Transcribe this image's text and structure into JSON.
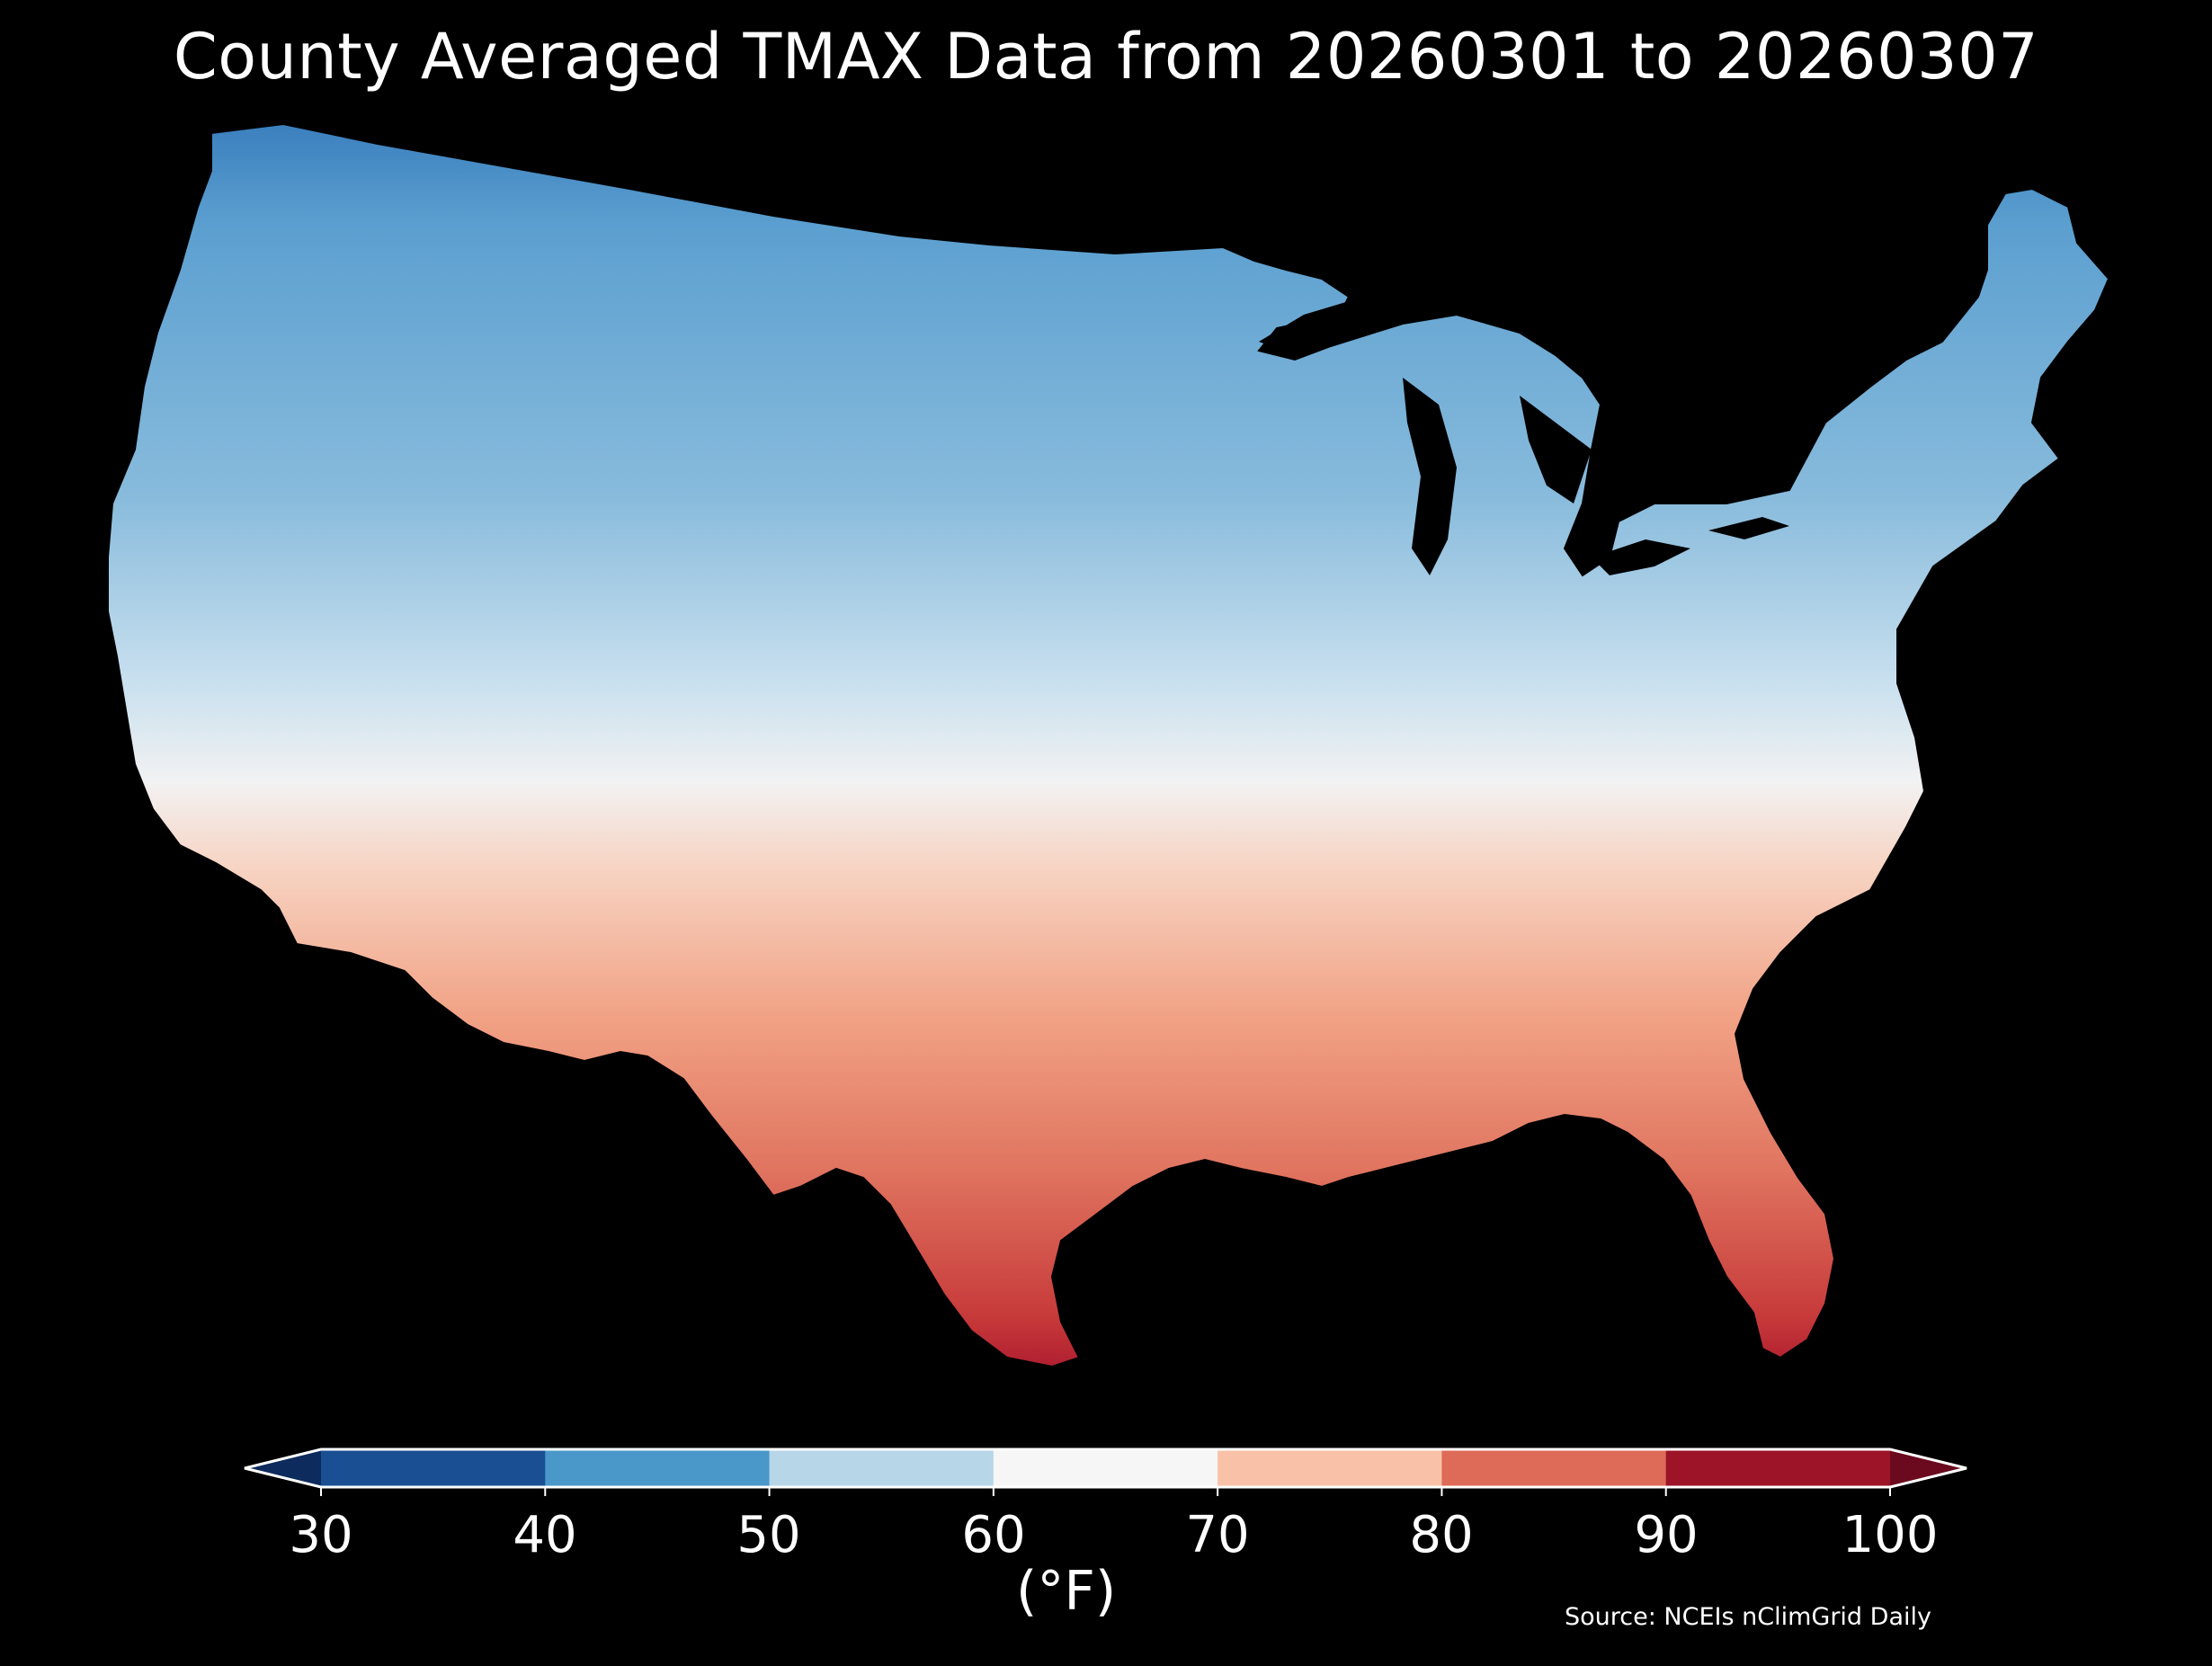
{
  "title": "County Averaged TMAX Data from 20260301 to 20260307",
  "colorbar": {
    "units": "(°F)",
    "ticks": [
      "30",
      "40",
      "50",
      "60",
      "70",
      "80",
      "90",
      "100"
    ],
    "colors": [
      "#1a4f93",
      "#4a97c9",
      "#b7d7e9",
      "#f6f6f6",
      "#f9c2a8",
      "#dd6b57",
      "#9d1328"
    ],
    "under_color": "#0d2b5c",
    "over_color": "#6b0a1e"
  },
  "source": "Source: NCEIs nClimGrid Daily",
  "colors": {
    "background": "#000000",
    "border": "#000000"
  }
}
